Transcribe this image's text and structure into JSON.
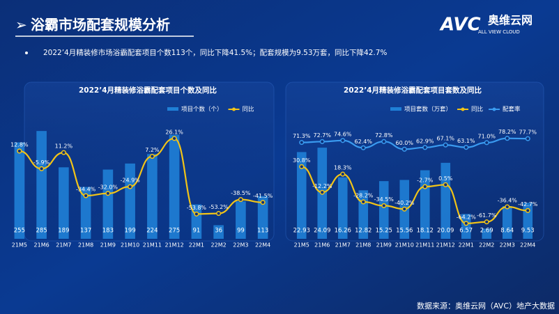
{
  "header": {
    "title": "浴霸市场配套规模分析",
    "logo": "AVC",
    "logo_cn": "奥维云网",
    "logo_en": "ALL VIEW CLOUD"
  },
  "bullet": "2022’4月精装修市场浴霸配套项目个数113个，同比下降41.5%；配套规模为9.53万套，同比下降42.7%",
  "footer": "数据来源：奥维云网（AVC）地产大数据",
  "chart_data": [
    {
      "type": "combo",
      "title": "2022’4月精装修浴霸配套项目个数及同比",
      "categories": [
        "21M5",
        "21M6",
        "21M7",
        "21M8",
        "21M9",
        "21M10",
        "21M11",
        "21M12",
        "22M1",
        "22M2",
        "22M3",
        "22M4"
      ],
      "ylim": [
        0,
        300
      ],
      "y2lim": [
        -80,
        40
      ],
      "series": [
        {
          "name": "项目个数（个）",
          "type": "bar",
          "color": "#1f7fd6",
          "values": [
            255,
            285,
            189,
            137,
            183,
            199,
            224,
            275,
            91,
            36,
            99,
            113
          ]
        },
        {
          "name": "同比",
          "type": "line",
          "axis": "y2",
          "color": "#f2c417",
          "values": [
            12.8,
            -5.9,
            11.2,
            -34.4,
            -32.0,
            -24.9,
            7.2,
            26.1,
            -53.8,
            -53.2,
            -38.5,
            -41.5
          ],
          "value_labels": [
            "12.8%",
            "-5.9%",
            "11.2%",
            "-34.4%",
            "-32.0%",
            "-24.9%",
            "7.2%",
            "26.1%",
            "-53.8%",
            "-53.2%",
            "-38.5%",
            "-41.5%"
          ]
        }
      ]
    },
    {
      "type": "combo",
      "title": "2022’4月精装修浴霸配套项目套数及同比",
      "categories": [
        "21M5",
        "21M6",
        "21M7",
        "21M8",
        "21M9",
        "21M10",
        "21M11",
        "21M12",
        "22M1",
        "22M2",
        "22M3",
        "22M4"
      ],
      "ylim": [
        0,
        30
      ],
      "y2lim": [
        -90,
        100
      ],
      "series": [
        {
          "name": "项目套数（万套）",
          "type": "bar",
          "color": "#1f7fd6",
          "values": [
            22.93,
            24.09,
            16.26,
            12.82,
            15.25,
            15.56,
            18.12,
            20.09,
            6.57,
            2.69,
            8.64,
            9.53
          ]
        },
        {
          "name": "同比",
          "type": "line",
          "axis": "y2",
          "color": "#f2c417",
          "values": [
            30.8,
            -12.2,
            18.3,
            -28.2,
            -34.5,
            -40.2,
            -2.7,
            0.5,
            -64.2,
            -61.7,
            -36.4,
            -42.7
          ],
          "value_labels": [
            "30.8%",
            "-12.2%",
            "18.3%",
            "-28.2%",
            "-34.5%",
            "-40.2%",
            "-2.7%",
            "0.5%",
            "-64.2%",
            "-61.7%",
            "-36.4%",
            "-42.7%"
          ]
        },
        {
          "name": "配套率",
          "type": "line",
          "axis": "y2",
          "color": "#3a9bf0",
          "values": [
            71.3,
            72.7,
            74.6,
            62.4,
            72.8,
            60.0,
            62.9,
            67.1,
            63.1,
            71.0,
            78.2,
            77.7
          ],
          "value_labels": [
            "71.3%",
            "72.7%",
            "74.6%",
            "62.4%",
            "72.8%",
            "60.0%",
            "62.9%",
            "67.1%",
            "63.1%",
            "71.0%",
            "78.2%",
            "77.7%"
          ]
        }
      ]
    }
  ]
}
